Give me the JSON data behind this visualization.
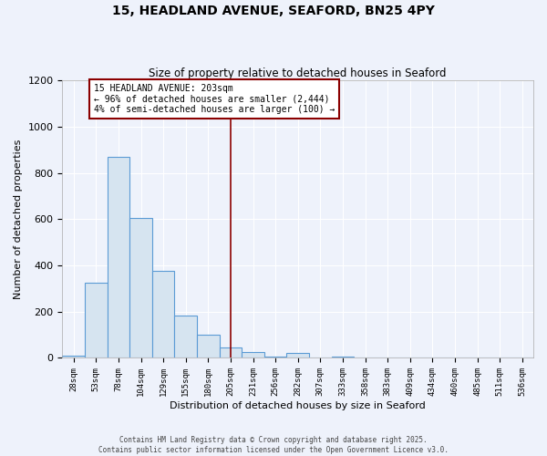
{
  "title_line1": "15, HEADLAND AVENUE, SEAFORD, BN25 4PY",
  "title_line2": "Size of property relative to detached houses in Seaford",
  "xlabel": "Distribution of detached houses by size in Seaford",
  "ylabel": "Number of detached properties",
  "bar_labels": [
    "28sqm",
    "53sqm",
    "78sqm",
    "104sqm",
    "129sqm",
    "155sqm",
    "180sqm",
    "205sqm",
    "231sqm",
    "256sqm",
    "282sqm",
    "307sqm",
    "333sqm",
    "358sqm",
    "383sqm",
    "409sqm",
    "434sqm",
    "460sqm",
    "485sqm",
    "511sqm",
    "536sqm"
  ],
  "bar_values": [
    10,
    325,
    870,
    605,
    375,
    185,
    100,
    45,
    25,
    5,
    20,
    0,
    5,
    0,
    0,
    0,
    0,
    0,
    0,
    0,
    2
  ],
  "bar_color": "#d6e4f0",
  "bar_edge_color": "#5b9bd5",
  "vline_index": 7,
  "vline_color": "#8b0000",
  "annotation_title": "15 HEADLAND AVENUE: 203sqm",
  "annotation_line1": "← 96% of detached houses are smaller (2,444)",
  "annotation_line2": "4% of semi-detached houses are larger (100) →",
  "annotation_box_edge": "#8b0000",
  "ylim": [
    0,
    1200
  ],
  "yticks": [
    0,
    200,
    400,
    600,
    800,
    1000,
    1200
  ],
  "background_color": "#eef2fb",
  "grid_color": "#ffffff",
  "footer_line1": "Contains HM Land Registry data © Crown copyright and database right 2025.",
  "footer_line2": "Contains public sector information licensed under the Open Government Licence v3.0."
}
